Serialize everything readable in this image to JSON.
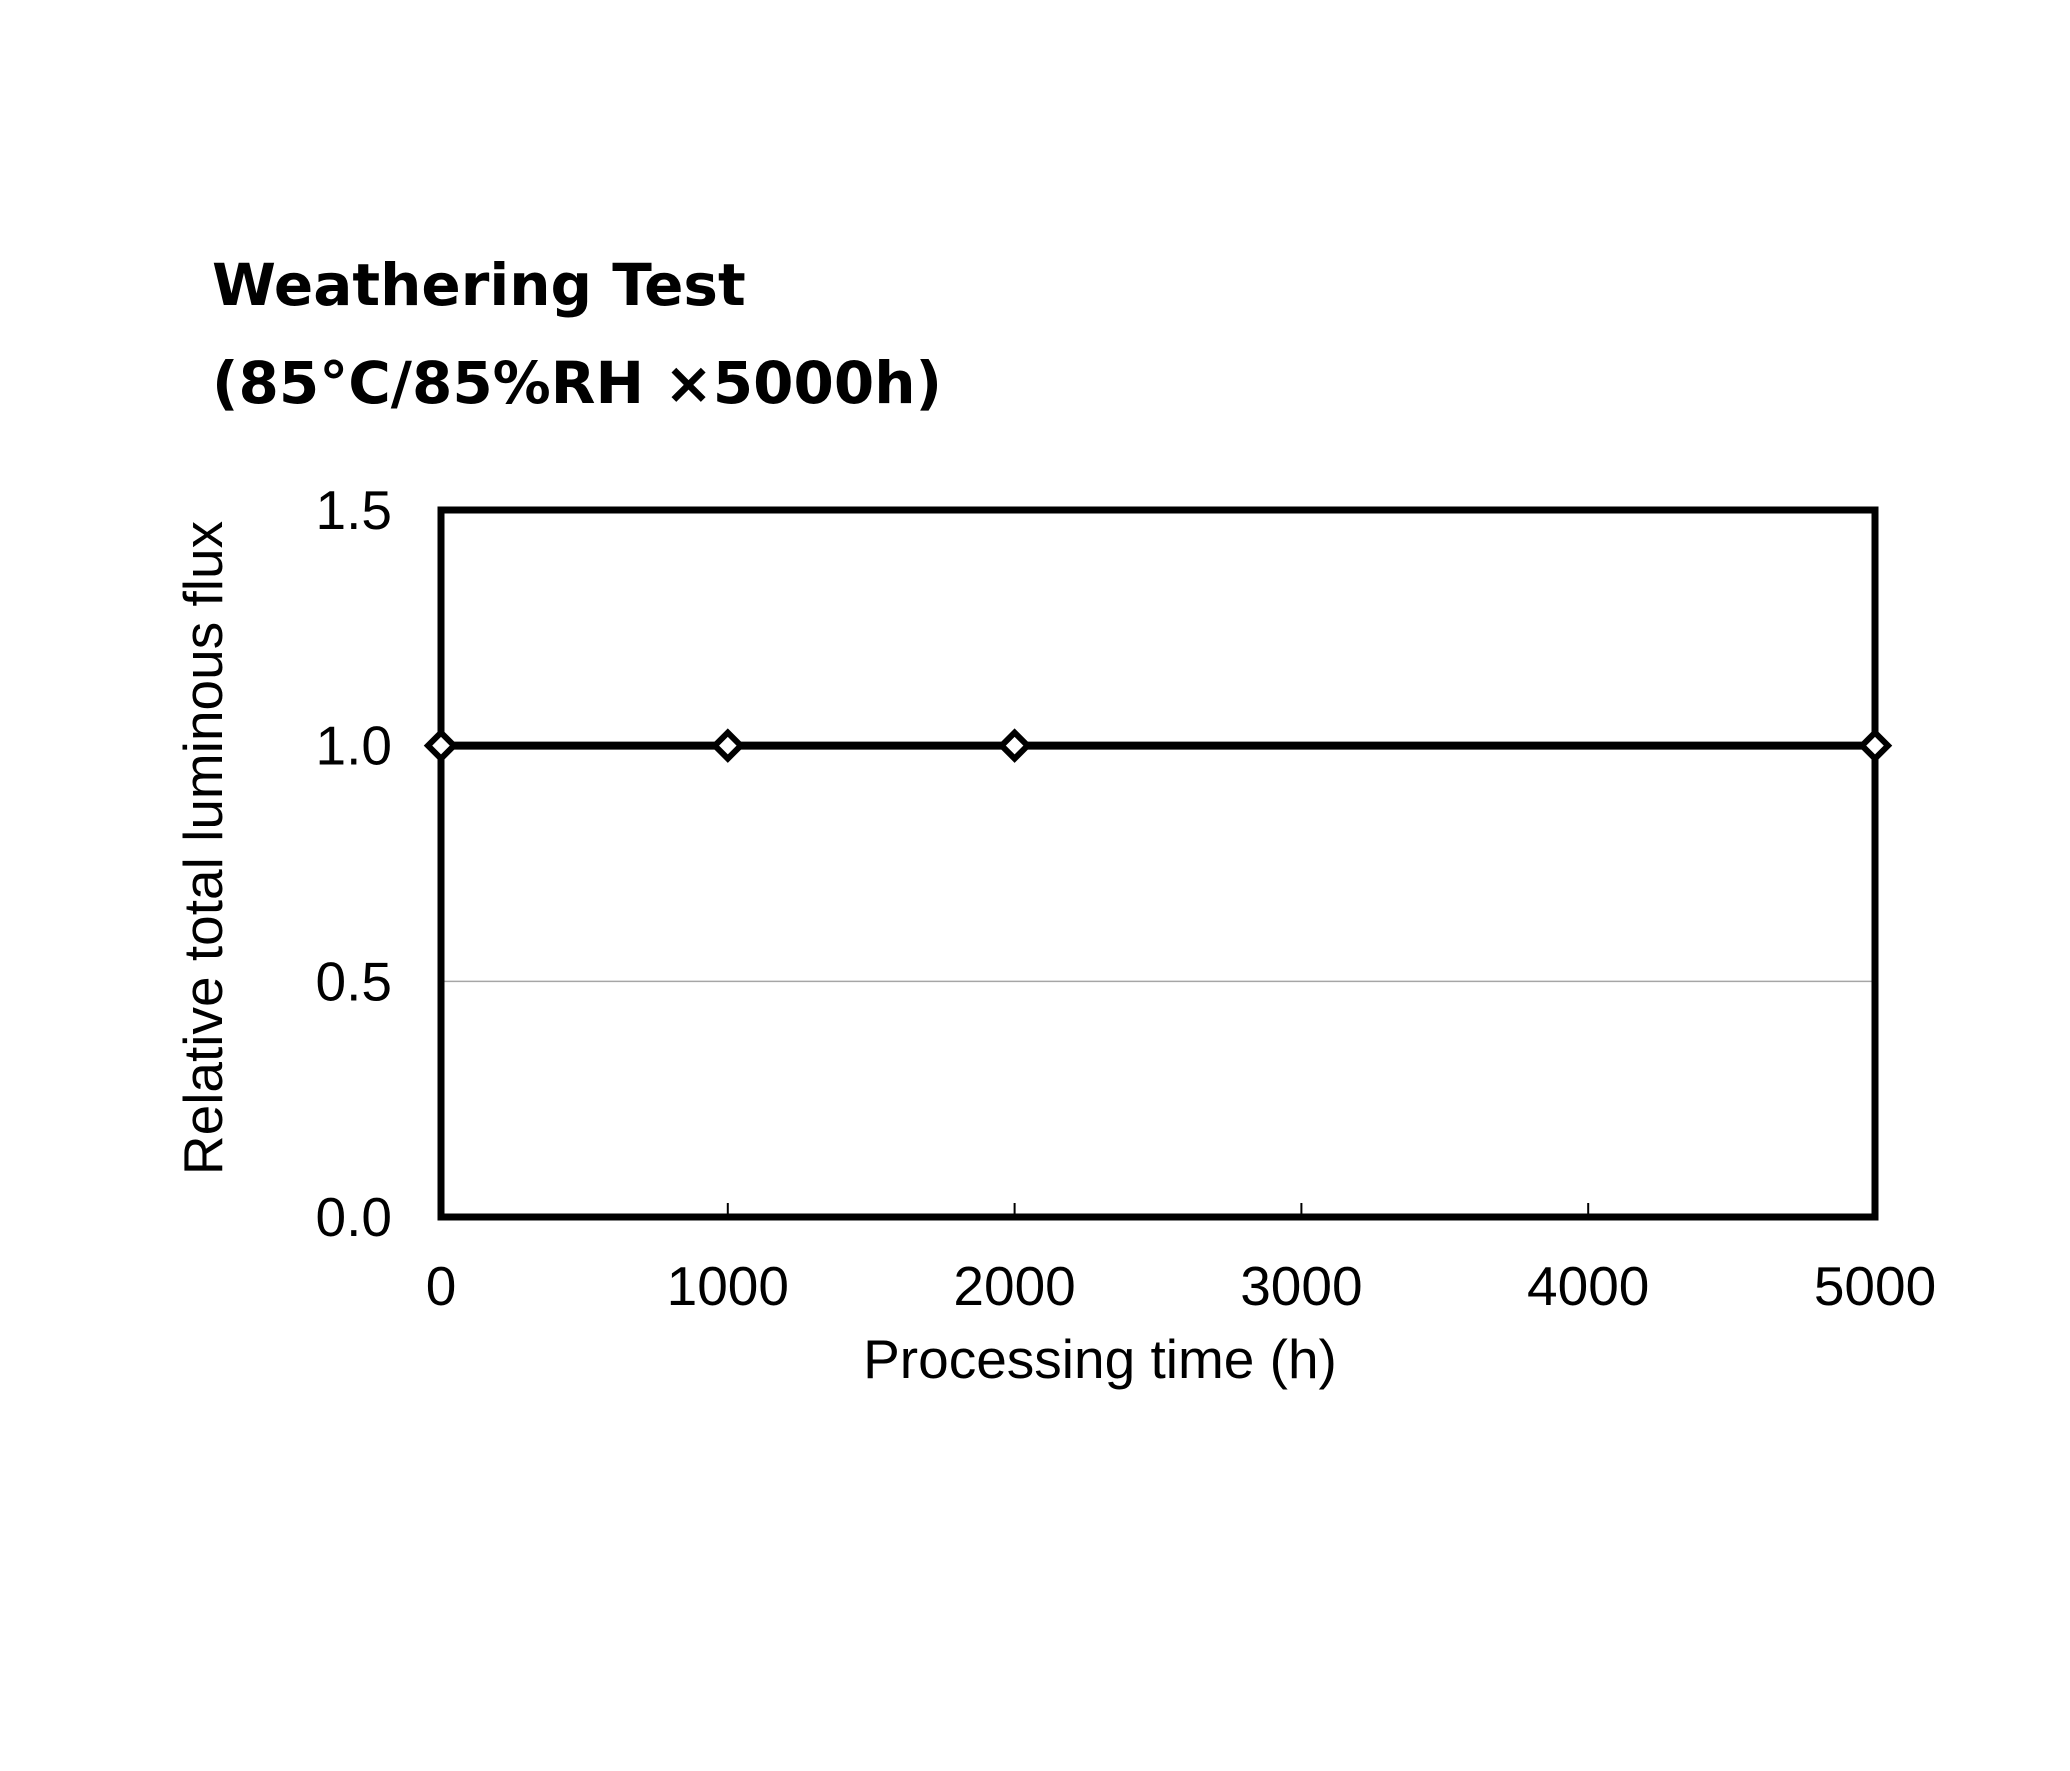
{
  "chart_data": {
    "type": "line",
    "title": "Weathering Test",
    "subtitle": "(85°C/85%RH ×5000h)",
    "xlabel": "Processing time (h)",
    "ylabel": "Relative total luminous flux",
    "xlim": [
      0,
      5000
    ],
    "ylim": [
      0,
      1.5
    ],
    "x_ticks": [
      "0",
      "1000",
      "2000",
      "3000",
      "4000",
      "5000"
    ],
    "y_ticks": [
      "0.0",
      "0.5",
      "1.0",
      "1.5"
    ],
    "gridlines_y": [
      0.5
    ],
    "series": [
      {
        "x": [
          0,
          1000,
          2000,
          5000
        ],
        "y": [
          1.0,
          1.0,
          1.0,
          1.0
        ],
        "marker": "diamond-open",
        "color": "#000000"
      }
    ],
    "legend": "none"
  }
}
